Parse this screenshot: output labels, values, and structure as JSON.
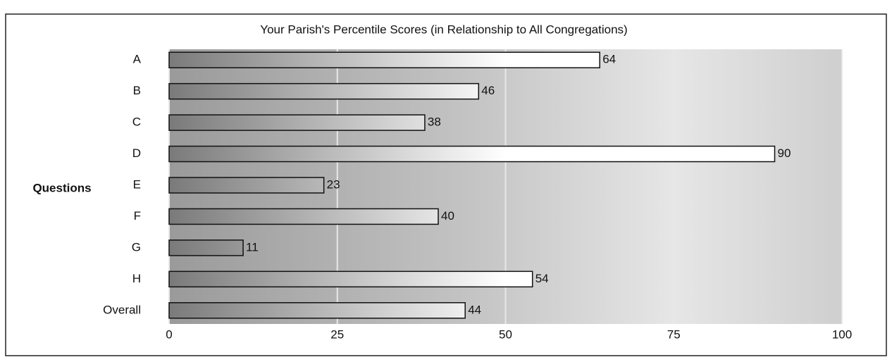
{
  "chart_data": {
    "type": "bar",
    "orientation": "horizontal",
    "title": "Your Parish's Percentile Scores (in Relationship to All Congregations)",
    "ylabel": "Questions",
    "categories": [
      "A",
      "B",
      "C",
      "D",
      "E",
      "F",
      "G",
      "H",
      "Overall"
    ],
    "values": [
      64,
      46,
      38,
      90,
      23,
      40,
      11,
      54,
      44
    ],
    "xlim": [
      0,
      100
    ],
    "xticks": [
      0,
      25,
      50,
      75,
      100
    ],
    "grid": true
  }
}
